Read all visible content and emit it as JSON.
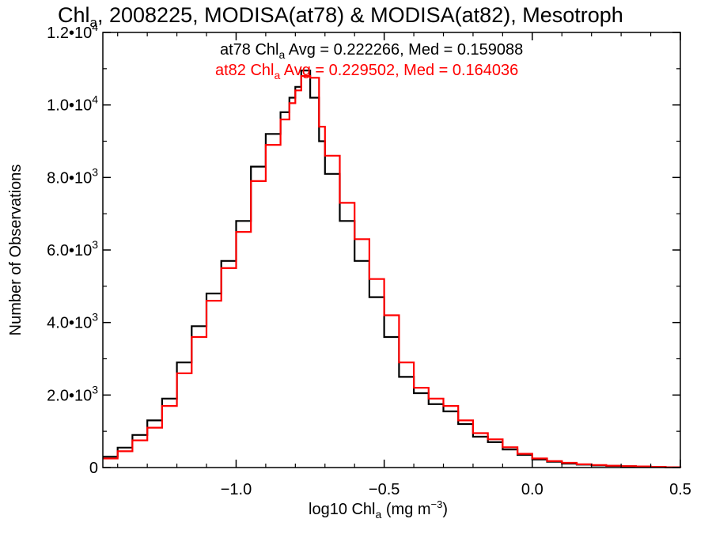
{
  "chart_data": {
    "type": "line",
    "title": "Chl",
    "title_sub": "a",
    "title_rest": ", 2008225, MODISA(at78) & MODISA(at82), Mesotroph",
    "xlabel": "log10 Chl",
    "xlabel_sub": "a",
    "xlabel_units": " (mg m",
    "xlabel_exp": "−3",
    "xlabel_close": ")",
    "ylabel": "Number of Observations",
    "xlim": [
      -1.45,
      0.5
    ],
    "ylim": [
      0,
      12000
    ],
    "x_ticks": [
      {
        "value": -1.0,
        "label": "−1.0"
      },
      {
        "value": -0.5,
        "label": "−0.5"
      },
      {
        "value": 0.0,
        "label": "0.0"
      },
      {
        "value": 0.5,
        "label": "0.5"
      }
    ],
    "y_ticks": [
      {
        "value": 0,
        "mant": "0",
        "exp": ""
      },
      {
        "value": 2000,
        "mant": "2.0•10",
        "exp": "3"
      },
      {
        "value": 4000,
        "mant": "4.0•10",
        "exp": "3"
      },
      {
        "value": 6000,
        "mant": "6.0•10",
        "exp": "3"
      },
      {
        "value": 8000,
        "mant": "8.0•10",
        "exp": "3"
      },
      {
        "value": 10000,
        "mant": "1.0•10",
        "exp": "4"
      },
      {
        "value": 12000,
        "mant": "1.2•10",
        "exp": "4"
      }
    ],
    "grid": false,
    "legend": "top-center",
    "annotations": [
      {
        "color": "#000000",
        "pre": "at78 Chl",
        "sub": "a",
        "post": " Avg = 0.222266, Med = 0.159088"
      },
      {
        "color": "#ff0000",
        "pre": "at82 Chl",
        "sub": "a",
        "post": " Avg = 0.229502, Med = 0.164036"
      }
    ],
    "series": [
      {
        "color": "#000000",
        "x": [
          -1.45,
          -1.4,
          -1.35,
          -1.3,
          -1.25,
          -1.2,
          -1.15,
          -1.1,
          -1.05,
          -1.0,
          -0.95,
          -0.9,
          -0.85,
          -0.82,
          -0.8,
          -0.78,
          -0.75,
          -0.72,
          -0.7,
          -0.65,
          -0.6,
          -0.55,
          -0.5,
          -0.45,
          -0.4,
          -0.35,
          -0.3,
          -0.25,
          -0.2,
          -0.15,
          -0.1,
          -0.05,
          0.0,
          0.05,
          0.1,
          0.15,
          0.2,
          0.25,
          0.3,
          0.35,
          0.4,
          0.45,
          0.5
        ],
        "values": [
          300,
          550,
          900,
          1300,
          1900,
          2900,
          3900,
          4800,
          5700,
          6800,
          8300,
          9200,
          9800,
          10200,
          10500,
          10950,
          10200,
          9000,
          8100,
          6800,
          5700,
          4700,
          3600,
          2500,
          2050,
          1750,
          1550,
          1200,
          850,
          700,
          500,
          350,
          220,
          160,
          110,
          80,
          60,
          45,
          35,
          25,
          15,
          5,
          0
        ]
      },
      {
        "color": "#ff0000",
        "x": [
          -1.45,
          -1.4,
          -1.35,
          -1.3,
          -1.25,
          -1.2,
          -1.15,
          -1.1,
          -1.05,
          -1.0,
          -0.95,
          -0.9,
          -0.85,
          -0.82,
          -0.8,
          -0.78,
          -0.75,
          -0.72,
          -0.7,
          -0.65,
          -0.6,
          -0.55,
          -0.5,
          -0.45,
          -0.4,
          -0.35,
          -0.3,
          -0.25,
          -0.2,
          -0.15,
          -0.1,
          -0.05,
          0.0,
          0.05,
          0.1,
          0.15,
          0.2,
          0.25,
          0.3,
          0.35,
          0.4,
          0.45,
          0.5
        ],
        "values": [
          250,
          450,
          750,
          1100,
          1700,
          2600,
          3600,
          4600,
          5500,
          6500,
          7900,
          8900,
          9600,
          10050,
          10400,
          10800,
          10750,
          9400,
          8600,
          7300,
          6300,
          5200,
          4200,
          2900,
          2200,
          1900,
          1700,
          1300,
          950,
          780,
          560,
          380,
          250,
          180,
          130,
          90,
          70,
          50,
          40,
          30,
          20,
          8,
          0
        ]
      }
    ]
  }
}
